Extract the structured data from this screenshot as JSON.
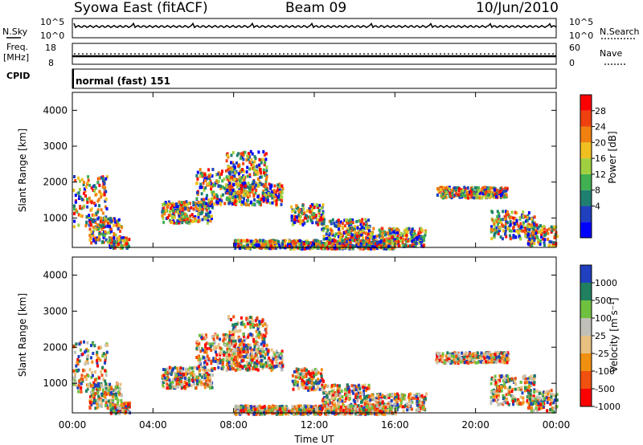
{
  "header": {
    "title": "Syowa East (fitACF)",
    "beam": "Beam 09",
    "date": "10/Jun/2010"
  },
  "status_panels": {
    "nsky_label": "N.Sky",
    "nsearch_label": "N.Search",
    "log_top": "10^5",
    "log_bottom": "10^0",
    "freq_label": "Freq.",
    "freq_unit": "[MHz]",
    "freq_ticks": [
      "18",
      "8"
    ],
    "nave_label": "Nave",
    "nave_ticks": [
      "60",
      "0"
    ],
    "cpid_label": "CPID",
    "cpid_value": "normal (fast) 151"
  },
  "colors": {
    "power_scale": [
      "#0000ff",
      "#2040c0",
      "#1f8070",
      "#40b050",
      "#a0d040",
      "#f0c020",
      "#f08010",
      "#f04010",
      "#ff0000"
    ],
    "velocity_scale": [
      "#ff0000",
      "#f05010",
      "#f09010",
      "#e8c080",
      "#c0c0b8",
      "#70c040",
      "#208060",
      "#2040c0"
    ]
  },
  "chart_data": [
    {
      "type": "heatmap",
      "ylabel": "Slant Range [km]",
      "ylim": [
        180,
        4500
      ],
      "y_ticks": [
        "4000",
        "3000",
        "2000",
        "1000"
      ],
      "colorbar_label": "Power [dB]",
      "colorbar_ticks": [
        "28",
        "24",
        "20",
        "16",
        "12",
        "8",
        "4"
      ],
      "clim": [
        0,
        30
      ]
    },
    {
      "type": "heatmap",
      "ylabel": "Slant Range [km]",
      "ylim": [
        180,
        4500
      ],
      "y_ticks": [
        "4000",
        "3000",
        "2000",
        "1000"
      ],
      "colorbar_label": "Velocity [m s⁻¹]",
      "colorbar_ticks": [
        "1000",
        "500",
        "100",
        "25",
        "-25",
        "-100",
        "-500",
        "-1000"
      ]
    }
  ],
  "xaxis": {
    "label": "Time UT",
    "ticks": [
      "00:00",
      "04:00",
      "08:00",
      "12:00",
      "16:00",
      "20:00",
      "00:00"
    ],
    "xlim_hours": [
      0,
      24
    ]
  }
}
